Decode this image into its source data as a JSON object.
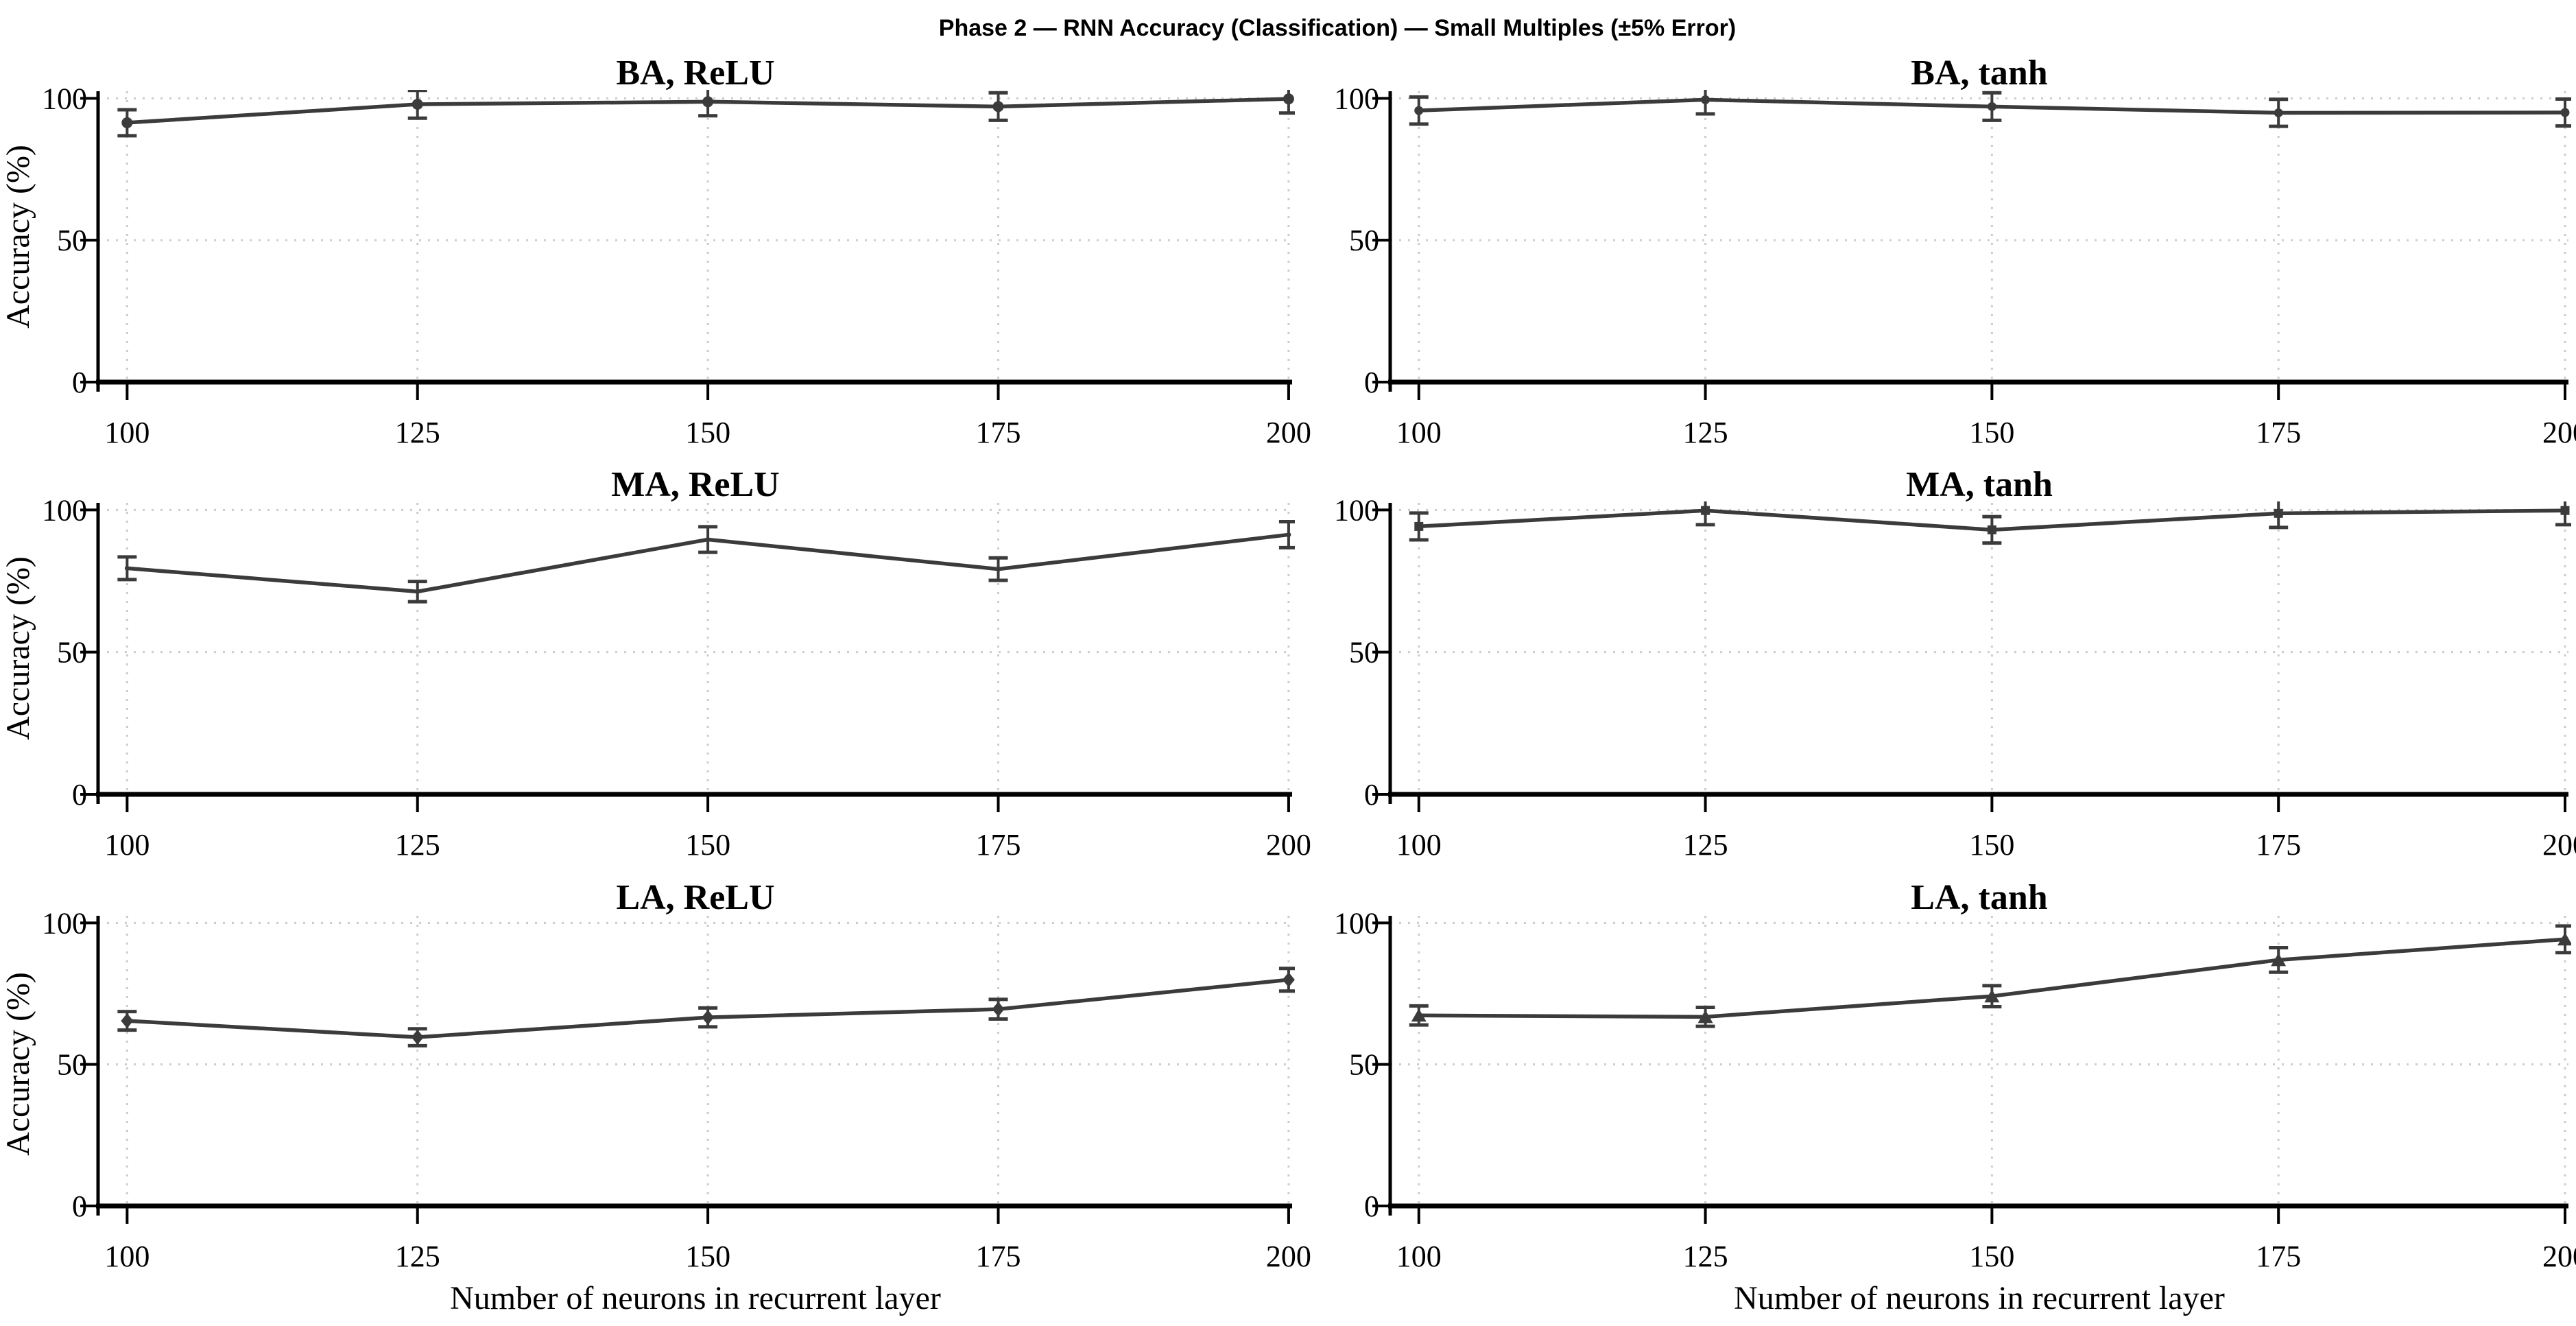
{
  "figure_title": "Phase 2 — RNN Accuracy (Classification) — Small Multiples (±5% Error)",
  "axes": {
    "xlabel": "Number of neurons in recurrent layer",
    "ylabel": "Accuracy (%)",
    "x_ticks": [
      100,
      125,
      150,
      175,
      200
    ],
    "y_ticks": [
      0,
      50,
      100
    ],
    "xlim": [
      97.5,
      200.3
    ],
    "ylim": [
      0,
      102.5
    ],
    "grid": "dotted",
    "error_bars": "±5% of value",
    "legend": "none"
  },
  "colors": {
    "series": "#3b3b3b",
    "spine": "#000000",
    "grid": "#cccccc",
    "text": "#000000",
    "background": "#ffffff"
  },
  "chart_data": [
    {
      "type": "line",
      "title": "BA, ReLU",
      "marker": "circle-large",
      "x": [
        100,
        125,
        150,
        175,
        200
      ],
      "values": [
        91.4,
        97.9,
        98.8,
        97.1,
        99.8
      ],
      "error_pct": 5
    },
    {
      "type": "line",
      "title": "BA, tanh",
      "marker": "circle-small",
      "x": [
        100,
        125,
        150,
        175,
        200
      ],
      "values": [
        95.7,
        99.5,
        97.1,
        94.9,
        95.0
      ],
      "error_pct": 5
    },
    {
      "type": "line",
      "title": "MA, ReLU",
      "marker": "dot",
      "x": [
        100,
        125,
        150,
        175,
        200
      ],
      "values": [
        79.5,
        71.3,
        89.6,
        79.2,
        91.3
      ],
      "error_pct": 5
    },
    {
      "type": "line",
      "title": "MA, tanh",
      "marker": "square",
      "x": [
        100,
        125,
        150,
        175,
        200
      ],
      "values": [
        94.2,
        99.8,
        93.0,
        98.8,
        99.8
      ],
      "error_pct": 5
    },
    {
      "type": "line",
      "title": "LA, ReLU",
      "marker": "diamond",
      "x": [
        100,
        125,
        150,
        175,
        200
      ],
      "values": [
        65.4,
        59.6,
        66.6,
        69.5,
        79.9
      ],
      "error_pct": 5
    },
    {
      "type": "line",
      "title": "LA, tanh",
      "marker": "triangle",
      "x": [
        100,
        125,
        150,
        175,
        200
      ],
      "values": [
        67.3,
        66.8,
        74.1,
        86.9,
        94.2
      ],
      "error_pct": 5
    }
  ]
}
